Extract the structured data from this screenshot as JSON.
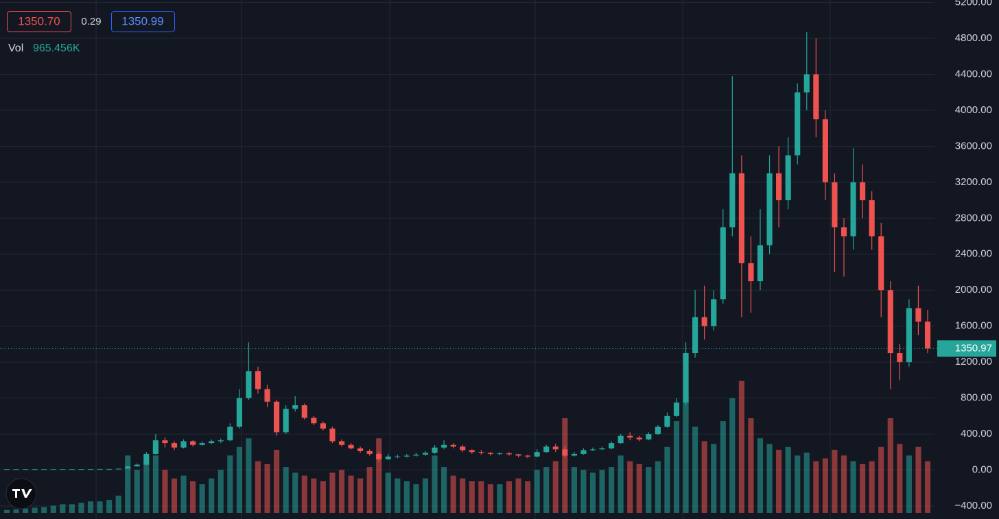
{
  "chart_data": {
    "type": "candlestick",
    "quote": {
      "bid": "1350.70",
      "spread": "0.29",
      "ask": "1350.99"
    },
    "volume_label": "Vol",
    "volume_value": "965.456K",
    "up_color": "#26a69a",
    "down_color": "#ef5350",
    "ylim": [
      -545,
      5227
    ],
    "yticks": [
      {
        "value": -400,
        "label": "−400.00"
      },
      {
        "value": 0,
        "label": "0.00"
      },
      {
        "value": 400,
        "label": "400.00"
      },
      {
        "value": 800,
        "label": "800.00"
      },
      {
        "value": 1200,
        "label": "1200.00"
      },
      {
        "value": 1600,
        "label": "1600.00"
      },
      {
        "value": 2000,
        "label": "2000.00"
      },
      {
        "value": 2400,
        "label": "2400.00"
      },
      {
        "value": 2800,
        "label": "2800.00"
      },
      {
        "value": 3200,
        "label": "3200.00"
      },
      {
        "value": 3600,
        "label": "3600.00"
      },
      {
        "value": 4000,
        "label": "4000.00"
      },
      {
        "value": 4400,
        "label": "4400.00"
      },
      {
        "value": 4800,
        "label": "4800.00"
      },
      {
        "value": 5200,
        "label": "5200.00"
      }
    ],
    "grid": true,
    "volume_lim": [
      0,
      1100
    ],
    "open": [
      9,
      10,
      10,
      10,
      10,
      10,
      10,
      10,
      10,
      11,
      11,
      12,
      12,
      15,
      40,
      60,
      180,
      330,
      300,
      250,
      320,
      280,
      300,
      320,
      330,
      480,
      800,
      1100,
      900,
      760,
      420,
      680,
      720,
      580,
      520,
      460,
      320,
      280,
      240,
      210,
      180,
      120,
      150,
      150,
      160,
      170,
      190,
      250,
      280,
      260,
      220,
      200,
      190,
      180,
      185,
      175,
      160,
      150,
      200,
      260,
      230,
      160,
      180,
      220,
      230,
      240,
      300,
      380,
      360,
      340,
      400,
      480,
      600,
      750,
      1300,
      1700,
      1600,
      1900,
      2700,
      3300,
      2300,
      2100,
      2500,
      3300,
      3000,
      3500,
      4200,
      4400,
      3900,
      3200,
      2700,
      2600,
      3200,
      3000,
      2600,
      2000,
      1300,
      1200,
      1800,
      1650
    ],
    "high": [
      11,
      11,
      11,
      11,
      11,
      11,
      11,
      11,
      12,
      12,
      13,
      13,
      16,
      45,
      70,
      200,
      400,
      360,
      320,
      340,
      330,
      320,
      340,
      350,
      520,
      900,
      1420,
      1150,
      950,
      780,
      720,
      820,
      740,
      600,
      540,
      480,
      340,
      300,
      260,
      230,
      200,
      180,
      170,
      180,
      190,
      210,
      280,
      330,
      300,
      280,
      230,
      220,
      200,
      200,
      200,
      180,
      170,
      230,
      280,
      290,
      270,
      200,
      240,
      250,
      260,
      320,
      400,
      420,
      380,
      420,
      500,
      640,
      800,
      1420,
      2000,
      2050,
      2000,
      2900,
      4380,
      3500,
      2600,
      2900,
      3500,
      3600,
      3700,
      4300,
      4870,
      4800,
      4000,
      3300,
      2800,
      3580,
      3400,
      3100,
      2750,
      2100,
      1400,
      1900,
      2050,
      1780
    ],
    "low": [
      8,
      9,
      9,
      9,
      9,
      9,
      9,
      9,
      9,
      10,
      10,
      11,
      11,
      14,
      38,
      55,
      170,
      250,
      220,
      240,
      260,
      270,
      290,
      300,
      320,
      460,
      780,
      850,
      700,
      380,
      400,
      650,
      560,
      500,
      440,
      300,
      260,
      230,
      190,
      160,
      85,
      110,
      130,
      140,
      150,
      160,
      180,
      230,
      240,
      200,
      180,
      170,
      160,
      165,
      160,
      140,
      130,
      140,
      190,
      200,
      140,
      150,
      170,
      210,
      220,
      230,
      290,
      330,
      320,
      330,
      390,
      470,
      590,
      720,
      1250,
      1450,
      1550,
      1850,
      2600,
      1700,
      1750,
      2000,
      2400,
      2700,
      2900,
      3400,
      4000,
      3700,
      3000,
      2200,
      2150,
      2450,
      2800,
      2450,
      1700,
      900,
      1000,
      1150,
      1500,
      1300
    ],
    "close": [
      10,
      10,
      10,
      10,
      10,
      10,
      10,
      10,
      11,
      11,
      12,
      12,
      15,
      40,
      60,
      180,
      330,
      300,
      250,
      320,
      280,
      300,
      320,
      330,
      480,
      800,
      1100,
      900,
      760,
      420,
      680,
      720,
      580,
      520,
      460,
      320,
      280,
      240,
      210,
      180,
      120,
      150,
      150,
      160,
      170,
      190,
      250,
      280,
      260,
      220,
      200,
      190,
      180,
      185,
      175,
      160,
      150,
      200,
      260,
      230,
      160,
      180,
      220,
      230,
      240,
      300,
      380,
      360,
      340,
      400,
      480,
      600,
      750,
      1300,
      1700,
      1600,
      1900,
      2700,
      3300,
      2300,
      2100,
      2500,
      3300,
      3000,
      3500,
      4200,
      4400,
      3900,
      3200,
      2700,
      2600,
      3200,
      3000,
      2600,
      2000,
      1300,
      1200,
      1800,
      1650,
      1350.97
    ],
    "volume": [
      10,
      12,
      15,
      18,
      20,
      25,
      30,
      30,
      35,
      40,
      40,
      45,
      60,
      200,
      150,
      180,
      200,
      150,
      120,
      130,
      110,
      100,
      120,
      150,
      200,
      230,
      260,
      180,
      170,
      220,
      160,
      140,
      130,
      120,
      110,
      140,
      150,
      130,
      120,
      160,
      260,
      140,
      120,
      110,
      100,
      120,
      200,
      160,
      130,
      120,
      110,
      110,
      100,
      100,
      110,
      120,
      110,
      150,
      160,
      180,
      330,
      160,
      150,
      140,
      150,
      160,
      200,
      180,
      170,
      160,
      180,
      230,
      320,
      420,
      300,
      250,
      240,
      320,
      400,
      460,
      330,
      260,
      240,
      220,
      230,
      200,
      210,
      180,
      190,
      220,
      200,
      180,
      170,
      180,
      230,
      330,
      240,
      200,
      230,
      180
    ]
  }
}
